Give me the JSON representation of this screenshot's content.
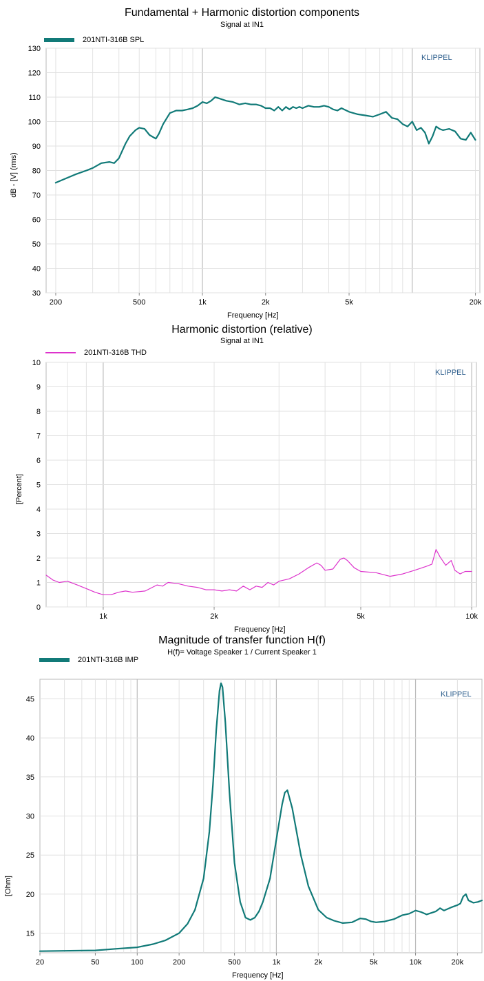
{
  "chart_data": [
    {
      "type": "line",
      "title": "Fundamental + Harmonic distortion components",
      "subtitle": "Signal at IN1",
      "xlabel": "Frequency [Hz]",
      "ylabel": "dB - [V] (rms)",
      "xscale": "log",
      "xlim": [
        180,
        21000
      ],
      "ylim": [
        30,
        130
      ],
      "x_ticks": [
        {
          "value": 200,
          "label": "200"
        },
        {
          "value": 500,
          "label": "500"
        },
        {
          "value": 1000,
          "label": "1k"
        },
        {
          "value": 2000,
          "label": "2k"
        },
        {
          "value": 5000,
          "label": "5k"
        },
        {
          "value": 20000,
          "label": "20k"
        }
      ],
      "y_ticks": [
        {
          "value": 30,
          "label": "30"
        },
        {
          "value": 40,
          "label": "40"
        },
        {
          "value": 50,
          "label": "50"
        },
        {
          "value": 60,
          "label": "60"
        },
        {
          "value": 70,
          "label": "70"
        },
        {
          "value": 80,
          "label": "80"
        },
        {
          "value": 90,
          "label": "90"
        },
        {
          "value": 100,
          "label": "100"
        },
        {
          "value": 110,
          "label": "110"
        },
        {
          "value": 120,
          "label": "120"
        },
        {
          "value": 130,
          "label": "130"
        }
      ],
      "grid": true,
      "legend_position": "top-left",
      "brand": "KLIPPEL",
      "series": [
        {
          "name": "201NTI-316B SPL",
          "color": "#117a78",
          "x": [
            200,
            220,
            250,
            280,
            300,
            330,
            360,
            380,
            400,
            430,
            450,
            480,
            500,
            530,
            560,
            600,
            620,
            650,
            700,
            750,
            800,
            850,
            900,
            950,
            1000,
            1050,
            1100,
            1150,
            1200,
            1300,
            1400,
            1500,
            1600,
            1700,
            1800,
            1900,
            2000,
            2100,
            2200,
            2300,
            2400,
            2500,
            2600,
            2700,
            2800,
            2900,
            3000,
            3200,
            3400,
            3600,
            3800,
            4000,
            4200,
            4400,
            4600,
            5000,
            5500,
            6000,
            6500,
            7000,
            7500,
            8000,
            8500,
            9000,
            9500,
            10000,
            10500,
            11000,
            11500,
            12000,
            12500,
            13000,
            13500,
            14000,
            15000,
            16000,
            17000,
            18000,
            19000,
            20000
          ],
          "y": [
            75,
            76.5,
            78.5,
            80,
            81,
            83,
            83.5,
            83,
            85,
            91,
            94,
            96.5,
            97.5,
            97,
            94.5,
            93,
            95,
            99,
            103.5,
            104.5,
            104.5,
            105,
            105.5,
            106.5,
            108,
            107.5,
            108.5,
            110,
            109.5,
            108.5,
            108,
            107,
            107.5,
            107,
            107,
            106.5,
            105.5,
            105.5,
            104.5,
            106,
            104.5,
            106,
            105,
            106,
            105.5,
            106,
            105.5,
            106.5,
            106,
            106,
            106.5,
            106,
            105,
            104.5,
            105.5,
            104,
            103,
            102.5,
            102,
            103,
            104,
            101.5,
            101,
            99,
            98,
            100,
            96.5,
            97.5,
            95.5,
            91,
            94,
            98,
            97,
            96.5,
            97,
            96,
            93,
            92.5,
            95.5,
            92.5
          ]
        }
      ]
    },
    {
      "type": "line",
      "title": "Harmonic distortion (relative)",
      "subtitle": "Signal at IN1",
      "xlabel": "Frequency [Hz]",
      "ylabel": "[Percent]",
      "xscale": "log",
      "xlim": [
        700,
        10300
      ],
      "ylim": [
        0,
        10
      ],
      "x_ticks": [
        {
          "value": 1000,
          "label": "1k"
        },
        {
          "value": 2000,
          "label": "2k"
        },
        {
          "value": 5000,
          "label": "5k"
        },
        {
          "value": 10000,
          "label": "10k"
        }
      ],
      "y_ticks": [
        {
          "value": 0,
          "label": "0"
        },
        {
          "value": 1,
          "label": "1"
        },
        {
          "value": 2,
          "label": "2"
        },
        {
          "value": 3,
          "label": "3"
        },
        {
          "value": 4,
          "label": "4"
        },
        {
          "value": 5,
          "label": "5"
        },
        {
          "value": 6,
          "label": "6"
        },
        {
          "value": 7,
          "label": "7"
        },
        {
          "value": 8,
          "label": "8"
        },
        {
          "value": 9,
          "label": "9"
        },
        {
          "value": 10,
          "label": "10"
        }
      ],
      "grid": true,
      "legend_position": "top-left",
      "brand": "KLIPPEL",
      "series": [
        {
          "name": "201NTI-316B THD",
          "color": "#dd33cc",
          "x": [
            700,
            730,
            760,
            800,
            850,
            900,
            950,
            1000,
            1050,
            1100,
            1150,
            1200,
            1300,
            1400,
            1450,
            1500,
            1600,
            1700,
            1800,
            1900,
            2000,
            2100,
            2200,
            2300,
            2400,
            2500,
            2600,
            2700,
            2800,
            2900,
            3000,
            3200,
            3400,
            3600,
            3800,
            3900,
            4000,
            4200,
            4400,
            4500,
            4600,
            4800,
            5000,
            5500,
            6000,
            6500,
            7000,
            7500,
            7800,
            8000,
            8200,
            8500,
            8800,
            9000,
            9300,
            9600,
            10000
          ],
          "y": [
            1.3,
            1.1,
            1.0,
            1.05,
            0.9,
            0.75,
            0.6,
            0.5,
            0.5,
            0.6,
            0.65,
            0.6,
            0.65,
            0.9,
            0.85,
            1.0,
            0.95,
            0.85,
            0.8,
            0.7,
            0.7,
            0.65,
            0.7,
            0.65,
            0.85,
            0.7,
            0.85,
            0.8,
            1.0,
            0.9,
            1.05,
            1.15,
            1.35,
            1.6,
            1.8,
            1.7,
            1.5,
            1.55,
            1.95,
            2.0,
            1.9,
            1.6,
            1.45,
            1.4,
            1.25,
            1.35,
            1.5,
            1.65,
            1.75,
            2.35,
            2.05,
            1.7,
            1.9,
            1.5,
            1.35,
            1.45,
            1.45
          ]
        }
      ]
    },
    {
      "type": "line",
      "title": "Magnitude of transfer function H(f)",
      "subtitle": "H(f)= Voltage Speaker 1 / Current Speaker 1",
      "xlabel": "Frequency [Hz]",
      "ylabel": "[Ohm]",
      "xscale": "log",
      "xlim": [
        20,
        30000
      ],
      "ylim": [
        12.5,
        47.5
      ],
      "x_ticks": [
        {
          "value": 20,
          "label": "20"
        },
        {
          "value": 50,
          "label": "50"
        },
        {
          "value": 100,
          "label": "100"
        },
        {
          "value": 200,
          "label": "200"
        },
        {
          "value": 500,
          "label": "500"
        },
        {
          "value": 1000,
          "label": "1k"
        },
        {
          "value": 2000,
          "label": "2k"
        },
        {
          "value": 5000,
          "label": "5k"
        },
        {
          "value": 10000,
          "label": "10k"
        },
        {
          "value": 20000,
          "label": "20k"
        }
      ],
      "y_ticks": [
        {
          "value": 15,
          "label": "15"
        },
        {
          "value": 20,
          "label": "20"
        },
        {
          "value": 25,
          "label": "25"
        },
        {
          "value": 30,
          "label": "30"
        },
        {
          "value": 35,
          "label": "35"
        },
        {
          "value": 40,
          "label": "40"
        },
        {
          "value": 45,
          "label": "45"
        }
      ],
      "grid": true,
      "legend_position": "top-left",
      "brand": "KLIPPEL",
      "series": [
        {
          "name": "201NTI-316B IMP",
          "color": "#117a78",
          "x": [
            20,
            30,
            50,
            70,
            100,
            130,
            160,
            200,
            230,
            260,
            300,
            330,
            350,
            370,
            390,
            400,
            410,
            430,
            460,
            500,
            550,
            600,
            650,
            700,
            750,
            800,
            900,
            1000,
            1100,
            1150,
            1200,
            1300,
            1500,
            1700,
            2000,
            2300,
            2600,
            3000,
            3500,
            4000,
            4400,
            4800,
            5200,
            6000,
            7000,
            8000,
            9000,
            10000,
            11000,
            12000,
            14000,
            15000,
            16000,
            18000,
            20000,
            21000,
            22000,
            23000,
            24000,
            26000,
            28000,
            30000
          ],
          "y": [
            12.7,
            12.75,
            12.8,
            13.0,
            13.2,
            13.6,
            14.1,
            15.0,
            16.2,
            18.0,
            22.0,
            28.0,
            34.0,
            41.0,
            46.0,
            47.0,
            46.5,
            42.0,
            33.0,
            24.0,
            19.0,
            17.0,
            16.7,
            17.0,
            17.8,
            19.0,
            22.0,
            27.0,
            31.5,
            33.0,
            33.3,
            31.0,
            25.0,
            21.0,
            18.0,
            17.0,
            16.6,
            16.3,
            16.4,
            16.9,
            16.8,
            16.5,
            16.4,
            16.5,
            16.8,
            17.3,
            17.5,
            17.9,
            17.7,
            17.4,
            17.8,
            18.2,
            17.9,
            18.3,
            18.6,
            18.8,
            19.7,
            20.0,
            19.2,
            18.9,
            19.0,
            19.2
          ]
        }
      ]
    }
  ]
}
